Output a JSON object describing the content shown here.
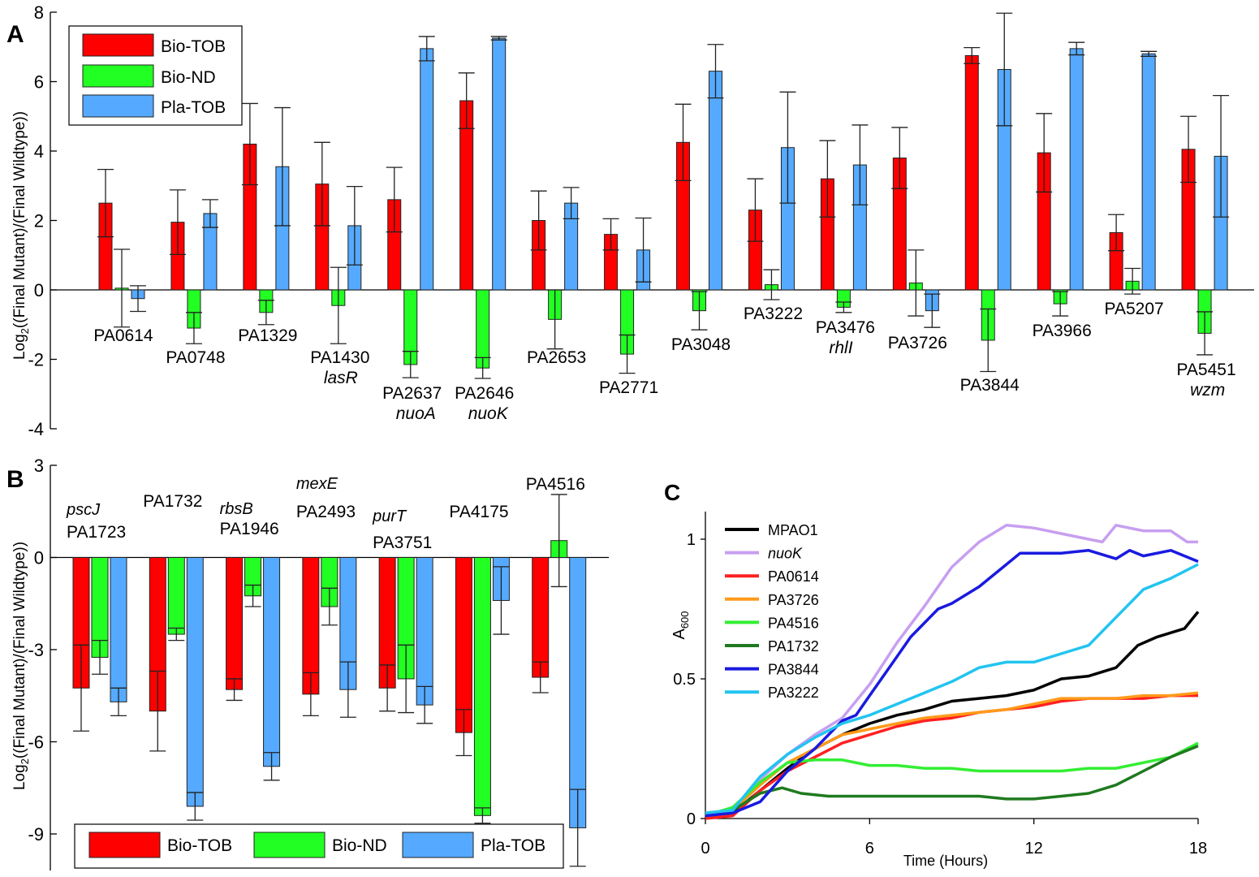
{
  "chart_data": [
    {
      "panel": "A",
      "type": "bar",
      "ylabel": "Log2((Final Mutant)/(Final Wildtype))",
      "ylim": [
        -4,
        8
      ],
      "yticks": [
        -4,
        -2,
        0,
        2,
        4,
        6,
        8
      ],
      "legend": {
        "placement": "top-left",
        "entries": [
          "Bio-TOB",
          "Bio-ND",
          "Pla-TOB"
        ]
      },
      "colors": {
        "Bio-TOB": "#ff0000",
        "Bio-ND": "#22ff22",
        "Pla-TOB": "#55aaff"
      },
      "categories": [
        {
          "label": "PA0614",
          "sub": ""
        },
        {
          "label": "PA0748",
          "sub": ""
        },
        {
          "label": "PA1329",
          "sub": ""
        },
        {
          "label": "PA1430",
          "sub": "lasR"
        },
        {
          "label": "PA2637",
          "sub": "nuoA"
        },
        {
          "label": "PA2646",
          "sub": "nuoK"
        },
        {
          "label": "PA2653",
          "sub": ""
        },
        {
          "label": "PA2771",
          "sub": ""
        },
        {
          "label": "PA3048",
          "sub": ""
        },
        {
          "label": "PA3222",
          "sub": ""
        },
        {
          "label": "PA3476",
          "sub": "rhlI"
        },
        {
          "label": "PA3726",
          "sub": ""
        },
        {
          "label": "PA3844",
          "sub": ""
        },
        {
          "label": "PA3966",
          "sub": ""
        },
        {
          "label": "PA5207",
          "sub": ""
        },
        {
          "label": "PA5451",
          "sub": "wzm"
        }
      ],
      "series": [
        {
          "name": "Bio-TOB",
          "values": [
            2.5,
            1.95,
            4.2,
            3.05,
            2.6,
            5.45,
            2.0,
            1.6,
            4.25,
            2.3,
            3.2,
            3.8,
            6.75,
            3.95,
            1.65,
            4.05
          ],
          "errors": [
            0.97,
            0.93,
            1.17,
            1.2,
            0.93,
            0.8,
            0.85,
            0.45,
            1.1,
            0.9,
            1.1,
            0.88,
            0.23,
            1.13,
            0.52,
            0.95
          ]
        },
        {
          "name": "Bio-ND",
          "values": [
            0.05,
            -1.1,
            -0.65,
            -0.45,
            -2.15,
            -2.25,
            -0.85,
            -1.85,
            -0.6,
            0.15,
            -0.5,
            0.2,
            -1.45,
            -0.4,
            0.25,
            -1.25
          ],
          "errors": [
            1.12,
            0.45,
            0.35,
            1.1,
            0.38,
            0.3,
            0.85,
            0.55,
            0.55,
            0.43,
            0.15,
            0.95,
            0.9,
            0.35,
            0.37,
            0.62
          ]
        },
        {
          "name": "Pla-TOB",
          "values": [
            -0.25,
            2.2,
            3.55,
            1.85,
            6.95,
            7.25,
            2.5,
            1.15,
            6.3,
            4.1,
            3.6,
            -0.6,
            6.35,
            6.95,
            6.8,
            3.85
          ],
          "errors": [
            0.37,
            0.4,
            1.7,
            1.13,
            0.35,
            0.05,
            0.45,
            0.92,
            0.77,
            1.6,
            1.15,
            0.48,
            1.62,
            0.18,
            0.07,
            1.75
          ]
        }
      ]
    },
    {
      "panel": "B",
      "type": "bar",
      "ylabel": "Log2((Final Mutant)/(Final Wildtype))",
      "ylim": [
        -10,
        3
      ],
      "yticks": [
        -9,
        -6,
        -3,
        0,
        3
      ],
      "legend": {
        "placement": "bottom",
        "entries": [
          "Bio-TOB",
          "Bio-ND",
          "Pla-TOB"
        ]
      },
      "categories": [
        {
          "label": "PA1723",
          "sub": "pscJ"
        },
        {
          "label": "PA1732",
          "sub": ""
        },
        {
          "label": "PA1946",
          "sub": "rbsB"
        },
        {
          "label": "PA2493",
          "sub": "mexE"
        },
        {
          "label": "PA3751",
          "sub": "purT"
        },
        {
          "label": "PA4175",
          "sub": ""
        },
        {
          "label": "PA4516",
          "sub": ""
        }
      ],
      "series": [
        {
          "name": "Bio-TOB",
          "values": [
            -4.25,
            -5.0,
            -4.3,
            -4.45,
            -4.25,
            -5.7,
            -3.9
          ],
          "errors": [
            1.4,
            1.3,
            0.35,
            0.7,
            0.75,
            0.75,
            0.5
          ]
        },
        {
          "name": "Bio-ND",
          "values": [
            -3.25,
            -2.5,
            -1.25,
            -1.6,
            -3.95,
            -8.4,
            0.55
          ],
          "errors": [
            0.55,
            0.2,
            0.35,
            0.6,
            1.1,
            0.25,
            1.5
          ]
        },
        {
          "name": "Pla-TOB",
          "values": [
            -4.7,
            -8.1,
            -6.8,
            -4.3,
            -4.8,
            -1.4,
            -8.8
          ],
          "errors": [
            0.45,
            0.45,
            0.45,
            0.9,
            0.6,
            1.1,
            1.25
          ]
        }
      ]
    },
    {
      "panel": "C",
      "type": "line",
      "xlabel": "Time (Hours)",
      "ylabel": "A600",
      "xlim": [
        0,
        18
      ],
      "ylim": [
        0,
        1.08
      ],
      "xticks": [
        0,
        6,
        12,
        18
      ],
      "yticks": [
        0,
        0.5,
        1
      ],
      "legend": {
        "placement": "top-left"
      },
      "series": [
        {
          "name": "MPAO1",
          "italic": false,
          "color": "#000000",
          "points": [
            [
              0,
              0.01
            ],
            [
              1,
              0.02
            ],
            [
              2,
              0.1
            ],
            [
              3,
              0.18
            ],
            [
              4,
              0.25
            ],
            [
              5,
              0.3
            ],
            [
              6,
              0.34
            ],
            [
              7,
              0.37
            ],
            [
              8,
              0.39
            ],
            [
              9,
              0.42
            ],
            [
              10,
              0.43
            ],
            [
              11,
              0.44
            ],
            [
              12,
              0.46
            ],
            [
              13,
              0.5
            ],
            [
              14,
              0.51
            ],
            [
              15,
              0.54
            ],
            [
              15.8,
              0.62
            ],
            [
              16.5,
              0.65
            ],
            [
              17.5,
              0.68
            ],
            [
              18,
              0.74
            ]
          ]
        },
        {
          "name": "nuoK",
          "italic": true,
          "color": "#c79ff0",
          "points": [
            [
              0,
              0.01
            ],
            [
              1,
              0.03
            ],
            [
              2,
              0.14
            ],
            [
              3,
              0.23
            ],
            [
              4,
              0.3
            ],
            [
              5,
              0.36
            ],
            [
              6,
              0.48
            ],
            [
              7,
              0.63
            ],
            [
              8,
              0.76
            ],
            [
              9,
              0.9
            ],
            [
              10,
              0.99
            ],
            [
              11,
              1.05
            ],
            [
              12,
              1.04
            ],
            [
              13,
              1.02
            ],
            [
              14,
              1.0
            ],
            [
              14.5,
              0.99
            ],
            [
              15,
              1.05
            ],
            [
              16,
              1.03
            ],
            [
              17,
              1.03
            ],
            [
              17.6,
              0.99
            ],
            [
              18,
              0.99
            ]
          ]
        },
        {
          "name": "PA0614",
          "italic": false,
          "color": "#ff2020",
          "points": [
            [
              0,
              0.0
            ],
            [
              1,
              0.01
            ],
            [
              2,
              0.1
            ],
            [
              3,
              0.17
            ],
            [
              4,
              0.22
            ],
            [
              5,
              0.27
            ],
            [
              6,
              0.3
            ],
            [
              7,
              0.33
            ],
            [
              8,
              0.35
            ],
            [
              9,
              0.36
            ],
            [
              10,
              0.38
            ],
            [
              11,
              0.39
            ],
            [
              12,
              0.4
            ],
            [
              13,
              0.42
            ],
            [
              14,
              0.43
            ],
            [
              15,
              0.43
            ],
            [
              16,
              0.43
            ],
            [
              17,
              0.44
            ],
            [
              18,
              0.44
            ]
          ]
        },
        {
          "name": "PA3726",
          "italic": false,
          "color": "#ff9a1a",
          "points": [
            [
              0,
              0.02
            ],
            [
              1,
              0.03
            ],
            [
              2,
              0.12
            ],
            [
              3,
              0.2
            ],
            [
              4,
              0.25
            ],
            [
              5,
              0.3
            ],
            [
              6,
              0.32
            ],
            [
              7,
              0.34
            ],
            [
              8,
              0.36
            ],
            [
              9,
              0.37
            ],
            [
              10,
              0.38
            ],
            [
              11,
              0.39
            ],
            [
              12,
              0.41
            ],
            [
              13,
              0.43
            ],
            [
              14,
              0.43
            ],
            [
              15,
              0.43
            ],
            [
              16,
              0.44
            ],
            [
              17,
              0.44
            ],
            [
              18,
              0.45
            ]
          ]
        },
        {
          "name": "PA4516",
          "italic": false,
          "color": "#33ee33",
          "points": [
            [
              0,
              0.01
            ],
            [
              1,
              0.04
            ],
            [
              2,
              0.13
            ],
            [
              3,
              0.2
            ],
            [
              4,
              0.21
            ],
            [
              5,
              0.21
            ],
            [
              6,
              0.19
            ],
            [
              7,
              0.19
            ],
            [
              8,
              0.18
            ],
            [
              9,
              0.18
            ],
            [
              10,
              0.17
            ],
            [
              11,
              0.17
            ],
            [
              12,
              0.17
            ],
            [
              13,
              0.17
            ],
            [
              14,
              0.18
            ],
            [
              15,
              0.18
            ],
            [
              16,
              0.2
            ],
            [
              17,
              0.22
            ],
            [
              18,
              0.27
            ]
          ]
        },
        {
          "name": "PA1732",
          "italic": false,
          "color": "#1f7a1f",
          "points": [
            [
              0,
              0.01
            ],
            [
              1,
              0.03
            ],
            [
              2,
              0.09
            ],
            [
              2.8,
              0.11
            ],
            [
              3.5,
              0.09
            ],
            [
              4.5,
              0.08
            ],
            [
              6,
              0.08
            ],
            [
              8,
              0.08
            ],
            [
              10,
              0.08
            ],
            [
              11,
              0.07
            ],
            [
              12,
              0.07
            ],
            [
              13,
              0.08
            ],
            [
              14,
              0.09
            ],
            [
              15,
              0.12
            ],
            [
              16,
              0.17
            ],
            [
              17,
              0.22
            ],
            [
              18,
              0.26
            ]
          ]
        },
        {
          "name": "PA3844",
          "italic": false,
          "color": "#1a1ae0",
          "points": [
            [
              0,
              0.01
            ],
            [
              1,
              0.02
            ],
            [
              2,
              0.06
            ],
            [
              3,
              0.17
            ],
            [
              4,
              0.25
            ],
            [
              5,
              0.35
            ],
            [
              5.5,
              0.37
            ],
            [
              6,
              0.44
            ],
            [
              7,
              0.58
            ],
            [
              7.5,
              0.65
            ],
            [
              8.5,
              0.75
            ],
            [
              9,
              0.77
            ],
            [
              10,
              0.83
            ],
            [
              11,
              0.91
            ],
            [
              11.5,
              0.95
            ],
            [
              12,
              0.95
            ],
            [
              13,
              0.95
            ],
            [
              14,
              0.96
            ],
            [
              15,
              0.93
            ],
            [
              15.5,
              0.96
            ],
            [
              16,
              0.94
            ],
            [
              17,
              0.96
            ],
            [
              18,
              0.92
            ]
          ]
        },
        {
          "name": "PA3222",
          "italic": false,
          "color": "#22c4f0",
          "points": [
            [
              0,
              0.02
            ],
            [
              1,
              0.03
            ],
            [
              2,
              0.15
            ],
            [
              3,
              0.23
            ],
            [
              4,
              0.29
            ],
            [
              5,
              0.34
            ],
            [
              6,
              0.37
            ],
            [
              7,
              0.41
            ],
            [
              8,
              0.45
            ],
            [
              9,
              0.49
            ],
            [
              10,
              0.54
            ],
            [
              11,
              0.56
            ],
            [
              12,
              0.56
            ],
            [
              13,
              0.59
            ],
            [
              14,
              0.62
            ],
            [
              15,
              0.72
            ],
            [
              16,
              0.82
            ],
            [
              17,
              0.86
            ],
            [
              18,
              0.91
            ]
          ]
        }
      ]
    }
  ],
  "panel_labels": {
    "a": "A",
    "b": "B",
    "c": "C"
  },
  "legend_labels": {
    "bio_tob": "Bio-TOB",
    "bio_nd": "Bio-ND",
    "pla_tob": "Pla-TOB"
  },
  "axis_titles": {
    "ab_ylabel_prefix": "Log",
    "ab_ylabel_sub": "2",
    "ab_ylabel_rest": "((Final Mutant)/(Final Wildtype))",
    "c_ylabel": "A",
    "c_ylabel_sub": "600",
    "c_xlabel": "Time (Hours)"
  }
}
